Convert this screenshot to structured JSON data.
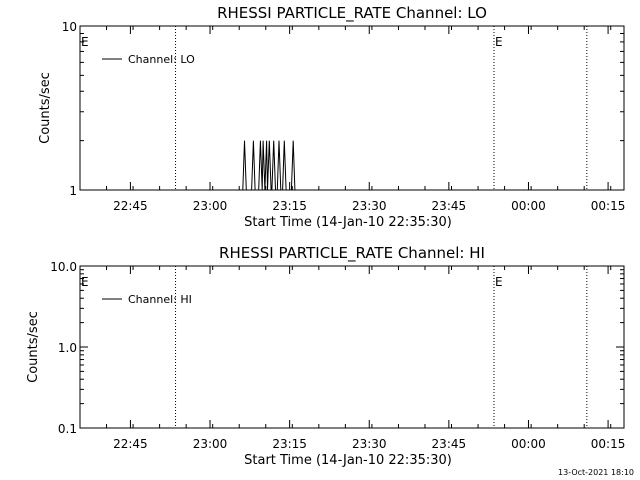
{
  "footer": {
    "timestamp": "13-Oct-2021 18:10"
  },
  "chart_data": [
    {
      "type": "line",
      "title": "RHESSI PARTICLE_RATE Channel: LO",
      "xlabel": "Start Time (14-Jan-10 22:35:30)",
      "ylabel": "Counts/sec",
      "y_scale": "log",
      "ylim": [
        1,
        10
      ],
      "y_ticks": [
        "1",
        "10"
      ],
      "xlim": [
        "22:35:30",
        "00:18:00"
      ],
      "x_ticks": [
        "22:45",
        "23:00",
        "23:15",
        "23:30",
        "23:45",
        "00:00",
        "00:15"
      ],
      "legend": {
        "position": "top-left",
        "entries": [
          "Channel: LO"
        ]
      },
      "markers": [
        {
          "time": "22:53:30",
          "label": ""
        },
        {
          "time": "23:53:30",
          "label": "E"
        },
        {
          "time": "00:11:00",
          "label": ""
        }
      ],
      "edge_marker": "E",
      "series": [
        {
          "name": "Channel: LO",
          "x": [
            "23:06:10",
            "23:06:30",
            "23:06:50",
            "23:07:50",
            "23:08:10",
            "23:08:30",
            "23:09:10",
            "23:09:30",
            "23:09:50",
            "23:10:00",
            "23:10:20",
            "23:10:40",
            "23:10:50",
            "23:11:10",
            "23:11:30",
            "23:11:40",
            "23:12:00",
            "23:12:20",
            "23:12:40",
            "23:13:00",
            "23:13:20",
            "23:13:40",
            "23:14:00",
            "23:14:20",
            "23:14:40",
            "23:15:00",
            "23:15:20",
            "23:15:40",
            "23:16:00",
            "23:16:20"
          ],
          "values": [
            1,
            2,
            1,
            1,
            2,
            1,
            1,
            2,
            1,
            2,
            1,
            2,
            1,
            2,
            1,
            1,
            2,
            1,
            1,
            2,
            1,
            1,
            2,
            1,
            1,
            1,
            1,
            2,
            1,
            1
          ]
        }
      ]
    },
    {
      "type": "line",
      "title": "RHESSI PARTICLE_RATE Channel: HI",
      "xlabel": "Start Time (14-Jan-10 22:35:30)",
      "ylabel": "Counts/sec",
      "y_scale": "log",
      "ylim": [
        0.1,
        10
      ],
      "y_ticks": [
        "0.1",
        "1.0",
        "10.0"
      ],
      "xlim": [
        "22:35:30",
        "00:18:00"
      ],
      "x_ticks": [
        "22:45",
        "23:00",
        "23:15",
        "23:30",
        "23:45",
        "00:00",
        "00:15"
      ],
      "legend": {
        "position": "top-left",
        "entries": [
          "Channel: HI"
        ]
      },
      "markers": [
        {
          "time": "22:53:30",
          "label": ""
        },
        {
          "time": "23:53:30",
          "label": "E"
        },
        {
          "time": "00:11:00",
          "label": ""
        }
      ],
      "edge_marker": "E",
      "series": [
        {
          "name": "Channel: HI",
          "x": [],
          "values": []
        }
      ]
    }
  ]
}
